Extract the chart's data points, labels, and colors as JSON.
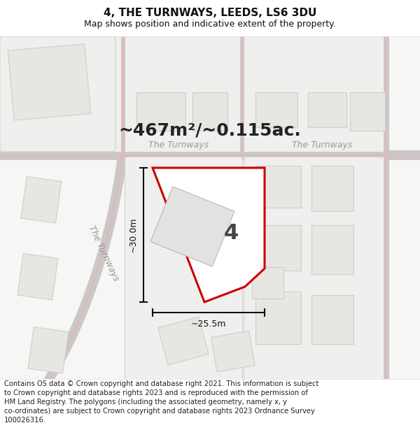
{
  "title": "4, THE TURNWAYS, LEEDS, LS6 3DU",
  "subtitle": "Map shows position and indicative extent of the property.",
  "area_label": "~467m²/~0.115ac.",
  "number_label": "4",
  "street_label1": "The Turnways",
  "street_label2": "The Turnways",
  "street_label3": "The Turnways",
  "dim_height": "~30.0m",
  "dim_width": "~25.5m",
  "footer": "Contains OS data © Crown copyright and database right 2021. This information is subject to Crown copyright and database rights 2023 and is reproduced with the permission of HM Land Registry. The polygons (including the associated geometry, namely x, y co-ordinates) are subject to Crown copyright and database rights 2023 Ordnance Survey 100026316.",
  "map_bg": "#f7f6f4",
  "road_center_color": "#f0b0b0",
  "road_edge_color": "#c8c8c8",
  "building_color": "#d0cdca",
  "building_fill": "#e8e6e3",
  "block_fill": "#efefed",
  "block_edge": "#cccccc",
  "property_color": "#cc0000",
  "property_fill": "#ffffff",
  "dim_color": "#111111",
  "title_fontsize": 11,
  "subtitle_fontsize": 9,
  "area_fontsize": 18,
  "number_fontsize": 22,
  "street_fontsize": 9,
  "dim_fontsize": 9,
  "footer_fontsize": 7.2,
  "figsize": [
    6.0,
    6.25
  ],
  "dpi": 100,
  "title_color": "#111111",
  "street_color": "#999999"
}
